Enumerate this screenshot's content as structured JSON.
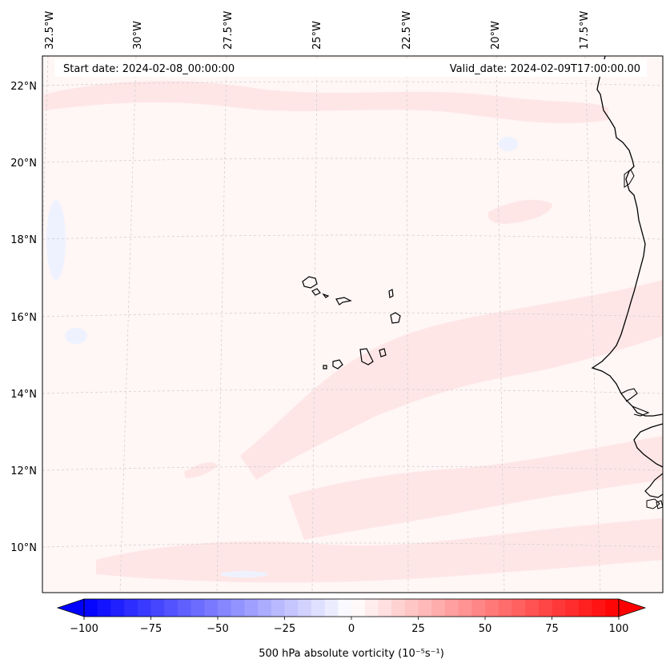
{
  "map": {
    "start_date": "Start date: 2024-02-08_00:00:00",
    "valid_date": "Valid_date: 2024-02-09T17:00:00.00",
    "lon_labels": [
      "32.5°W",
      "30°W",
      "27.5°W",
      "25°W",
      "22.5°W",
      "20°W",
      "17.5°W"
    ],
    "lat_labels": [
      "22°N",
      "20°N",
      "18°N",
      "16°N",
      "14°N",
      "12°N",
      "10°N"
    ]
  },
  "colorbar": {
    "label": "500 hPa absolute vorticity (10⁻⁵s⁻¹)",
    "ticks": [
      "−100",
      "−75",
      "−50",
      "−25",
      "0",
      "25",
      "50",
      "75",
      "100"
    ],
    "range": [
      -100,
      100
    ],
    "low_color": "#0000ff",
    "high_color": "#ff0000"
  },
  "colors": {
    "background_field": "#fff6f6",
    "anomaly_light": "#ffe4e4",
    "negative_light": "#f2f5ff",
    "coast": "#000000",
    "grid": "#cccccc"
  }
}
